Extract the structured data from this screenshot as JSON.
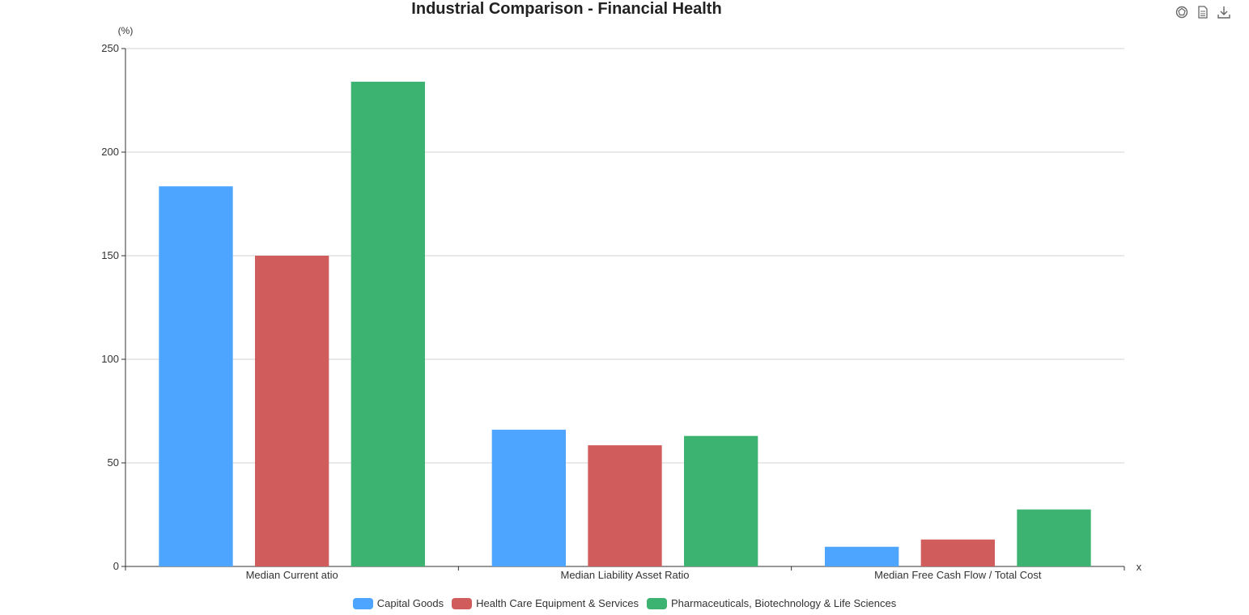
{
  "header": {
    "title": "Industrial Comparison - Financial Health"
  },
  "toolbar": {
    "icons": [
      "chart-type-icon",
      "data-view-icon",
      "download-icon"
    ]
  },
  "chart_data": {
    "type": "bar",
    "title": "Industrial Comparison - Financial Health",
    "ylabel": "(%)",
    "xlabel": "x",
    "ylim": [
      0,
      250
    ],
    "yticks": [
      0,
      50,
      100,
      150,
      200,
      250
    ],
    "grid": true,
    "legend_position": "bottom-center",
    "categories": [
      "Median Current atio",
      "Median Liability Asset Ratio",
      "Median Free Cash Flow / Total Cost"
    ],
    "series": [
      {
        "name": "Capital Goods",
        "color": "#4ea5ff",
        "values": [
          183.5,
          66,
          9.5
        ]
      },
      {
        "name": "Health Care Equipment & Services",
        "color": "#d05c5c",
        "values": [
          150,
          58.5,
          13
        ]
      },
      {
        "name": "Pharmaceuticals, Biotechnology & Life Sciences",
        "color": "#3cb371",
        "values": [
          234,
          63,
          27.5
        ]
      }
    ]
  }
}
